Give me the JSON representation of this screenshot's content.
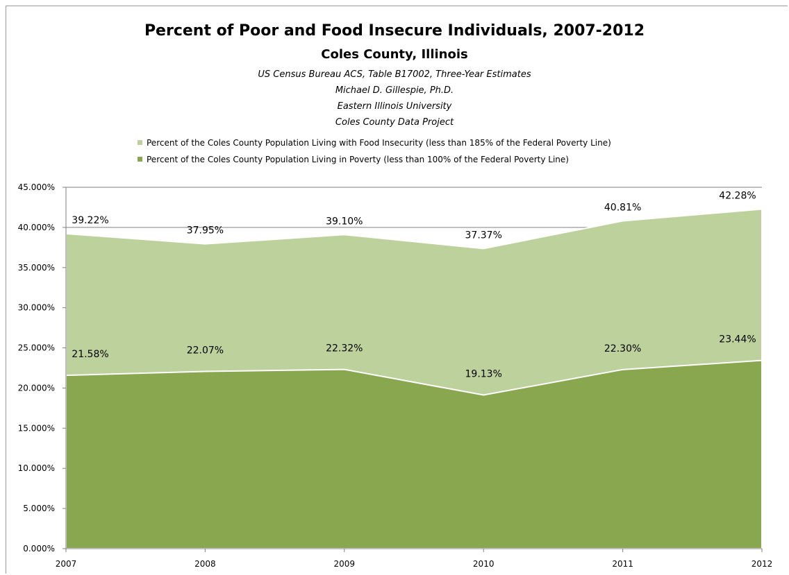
{
  "header": {
    "title": "Percent of Poor and Food Insecure Individuals, 2007-2012",
    "subtitle": "Coles County, Illinois",
    "notes": [
      "US Census Bureau ACS, Table B17002, Three-Year Estimates",
      "Michael D. Gillespie, Ph.D.",
      "Eastern Illinois University",
      "Coles County Data Project"
    ]
  },
  "colors": {
    "food_insecurity": "#bcd19b",
    "poverty": "#89a74f",
    "gridline": "#7f7f7f"
  },
  "chart_data": {
    "type": "area",
    "title": "Percent of Poor and Food Insecure Individuals, 2007-2012",
    "x": [
      "2007",
      "2008",
      "2009",
      "2010",
      "2011",
      "2012"
    ],
    "ylim": [
      0,
      45
    ],
    "yticks": [
      "0.000%",
      "5.000%",
      "10.000%",
      "15.000%",
      "20.000%",
      "25.000%",
      "30.000%",
      "35.000%",
      "40.000%",
      "45.000%"
    ],
    "grid": "horizontal major gridlines",
    "legend_position": "top",
    "series": [
      {
        "name": "Percent of the Coles County Population Living with Food Insecurity (less than 185% of the Federal Poverty Line)",
        "values": [
          39.22,
          37.95,
          39.1,
          37.37,
          40.81,
          42.28
        ],
        "labels": [
          "39.22%",
          "37.95%",
          "39.10%",
          "37.37%",
          "40.81%",
          "42.28%"
        ]
      },
      {
        "name": "Percent of the Coles County Population Living in Poverty (less than 100% of the Federal Poverty Line)",
        "values": [
          21.58,
          22.07,
          22.32,
          19.13,
          22.3,
          23.44
        ],
        "labels": [
          "21.58%",
          "22.07%",
          "22.32%",
          "19.13%",
          "22.30%",
          "23.44%"
        ]
      }
    ]
  }
}
